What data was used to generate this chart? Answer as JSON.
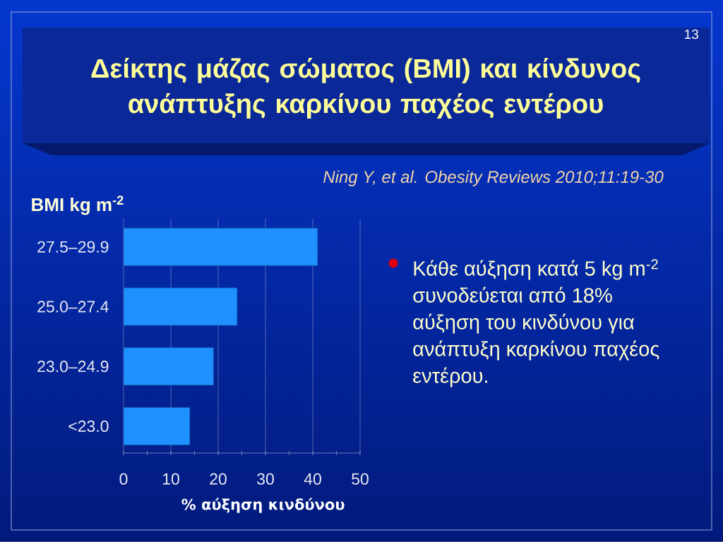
{
  "chart_data": {
    "type": "bar",
    "orientation": "horizontal",
    "title": "Δείκτης μάζας σώματος (BMI) και κίνδυνος ανάπτυξης καρκίνου παχέος εντέρου",
    "xlabel": "% αύξηση κινδύνου",
    "ylabel": "BMI kg m$^{-2}$",
    "categories": [
      "27.5–29.9",
      "25.0–27.4",
      "23.0–24.9",
      "<23.0"
    ],
    "values": [
      41,
      24,
      19,
      14
    ],
    "color": "#1e90ff",
    "xlim": [
      0,
      50
    ],
    "xticks": [
      0,
      10,
      20,
      30,
      40,
      50
    ],
    "grid": "x",
    "annotations": [
      "13",
      "Ning Y, et al. Obesity Reviews 2010;11:19-30",
      "Κάθε αύξηση κατά 5 kg m$^{-2}$ συνοδεύεται από 18% αύξηση του κινδύνου για ανάπτυξη καρκίνου παχέος εντέρου."
    ]
  }
}
